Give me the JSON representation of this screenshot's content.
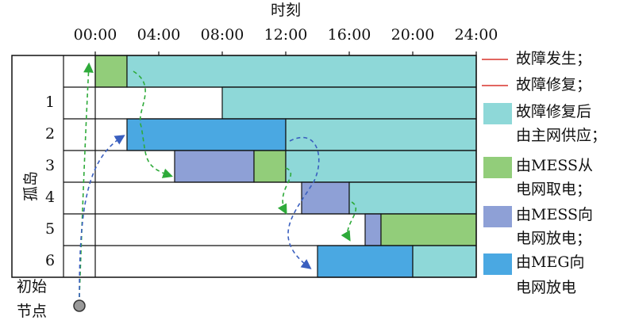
{
  "chart_data": {
    "type": "gantt",
    "xlabel": "时刻",
    "xlim": [
      0,
      24
    ],
    "xticks": [
      {
        "value": 0,
        "label": "00:00"
      },
      {
        "value": 4,
        "label": "04:00"
      },
      {
        "value": 8,
        "label": "08:00"
      },
      {
        "value": 12,
        "label": "12:00"
      },
      {
        "value": 16,
        "label": "16:00"
      },
      {
        "value": 20,
        "label": "20:00"
      },
      {
        "value": 24,
        "label": "24:00"
      }
    ],
    "ylabel": "孤岛",
    "start_label": [
      "初始",
      "节点"
    ],
    "rows": [
      {
        "label": null,
        "segments": [
          {
            "start": 0,
            "end": 2,
            "color": "#92cd7a"
          },
          {
            "start": 2,
            "end": 24,
            "color": "#8ed8d8"
          }
        ]
      },
      {
        "label": "1",
        "segments": [
          {
            "start": 8,
            "end": 24,
            "color": "#8ed8d8"
          }
        ]
      },
      {
        "label": "2",
        "segments": [
          {
            "start": 2,
            "end": 12,
            "color": "#4aa8e2"
          },
          {
            "start": 12,
            "end": 24,
            "color": "#8ed8d8"
          }
        ]
      },
      {
        "label": "3",
        "segments": [
          {
            "start": 5,
            "end": 10,
            "color": "#8ea0d6"
          },
          {
            "start": 10,
            "end": 12,
            "color": "#92cd7a"
          },
          {
            "start": 12,
            "end": 24,
            "color": "#8ed8d8"
          }
        ]
      },
      {
        "label": "4",
        "segments": [
          {
            "start": 13,
            "end": 16,
            "color": "#8ea0d6"
          },
          {
            "start": 16,
            "end": 24,
            "color": "#8ed8d8"
          }
        ]
      },
      {
        "label": "5",
        "segments": [
          {
            "start": 17,
            "end": 18,
            "color": "#8ea0d6"
          },
          {
            "start": 18,
            "end": 24,
            "color": "#92cd7a"
          }
        ]
      },
      {
        "label": "6",
        "segments": [
          {
            "start": 14,
            "end": 20,
            "color": "#4aa8e2"
          },
          {
            "start": 20,
            "end": 24,
            "color": "#8ed8d8"
          }
        ]
      }
    ],
    "legend": [
      {
        "kind": "line",
        "color": "#d9342b",
        "label": [
          "故障发生；"
        ]
      },
      {
        "kind": "line",
        "color": "#d9342b",
        "label": [
          "故障修复；"
        ]
      },
      {
        "kind": "box",
        "color": "#8ed8d8",
        "label": [
          "故障修复后",
          "由主网供应；"
        ]
      },
      {
        "kind": "box",
        "color": "#92cd7a",
        "label": [
          "由MESS从",
          "电网取电；"
        ]
      },
      {
        "kind": "box",
        "color": "#8ea0d6",
        "label": [
          "由MESS向",
          "电网放电；"
        ]
      },
      {
        "kind": "box",
        "color": "#4aa8e2",
        "label": [
          "由MEG向",
          "电网放电"
        ]
      }
    ]
  }
}
